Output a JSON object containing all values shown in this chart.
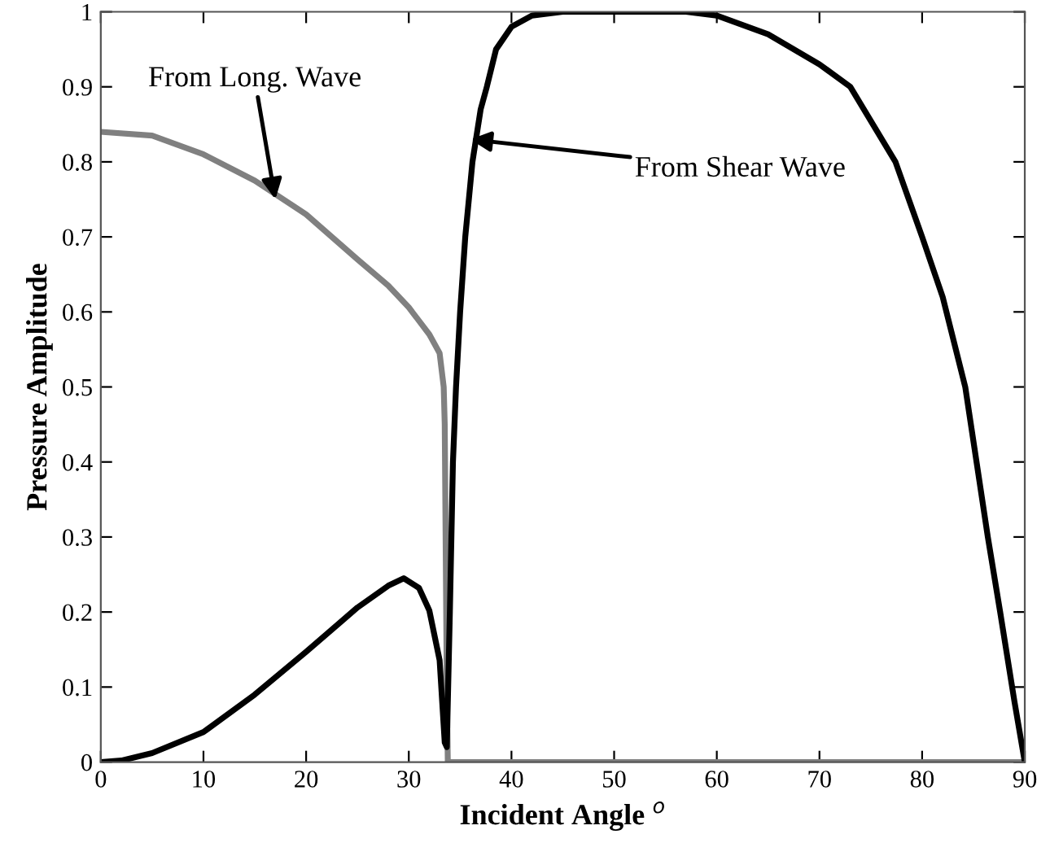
{
  "chart_data": {
    "type": "line",
    "xlabel": "Incident Angle $^{o}$",
    "ylabel": "Pressure Amplitude",
    "xlim": [
      0,
      90
    ],
    "ylim": [
      0,
      1
    ],
    "xticks": [
      0,
      10,
      20,
      30,
      40,
      50,
      60,
      70,
      80,
      90
    ],
    "yticks": [
      0,
      0.1,
      0.2,
      0.3,
      0.4,
      0.5,
      0.6,
      0.7,
      0.8,
      0.9,
      1
    ],
    "grid": false,
    "legend": false,
    "marker": "none",
    "line_style": "solid",
    "series": [
      {
        "color": "#808080",
        "x": [
          0,
          5,
          10,
          15,
          20,
          25,
          28,
          30,
          32,
          33,
          33.4,
          33.5,
          33.7,
          33.8,
          40,
          50,
          60,
          70,
          80,
          90
        ],
        "values": [
          0.84,
          0.835,
          0.81,
          0.775,
          0.73,
          0.67,
          0.635,
          0.606,
          0.57,
          0.545,
          0.5,
          0.45,
          0.1,
          0,
          0,
          0,
          0,
          0,
          0,
          0
        ]
      },
      {
        "color": "#000000",
        "x": [
          0,
          2,
          5,
          10,
          15,
          20,
          25,
          28,
          29.5,
          31,
          32,
          33,
          33.5,
          33.7,
          34.0,
          34.3,
          34.6,
          35,
          35.5,
          36.2,
          37,
          37.6,
          38.5,
          40,
          42,
          45,
          50,
          57,
          60,
          65,
          70,
          73,
          77.4,
          80,
          82,
          84.2,
          86.4,
          87.6,
          89,
          90
        ],
        "values": [
          0,
          0.002,
          0.012,
          0.04,
          0.09,
          0.147,
          0.206,
          0.235,
          0.245,
          0.232,
          0.202,
          0.136,
          0.026,
          0.02,
          0.2,
          0.4,
          0.5,
          0.6,
          0.7,
          0.8,
          0.87,
          0.9,
          0.95,
          0.98,
          0.995,
          1,
          1,
          1,
          0.995,
          0.97,
          0.93,
          0.9,
          0.8,
          0.7,
          0.62,
          0.5,
          0.3,
          0.2,
          0.08,
          0
        ]
      }
    ],
    "annotations": [
      {
        "text": "From Long. Wave",
        "x": 17,
        "y": 0.75
      },
      {
        "text": "From Shear Wave",
        "x": 36,
        "y": 0.83
      }
    ]
  }
}
